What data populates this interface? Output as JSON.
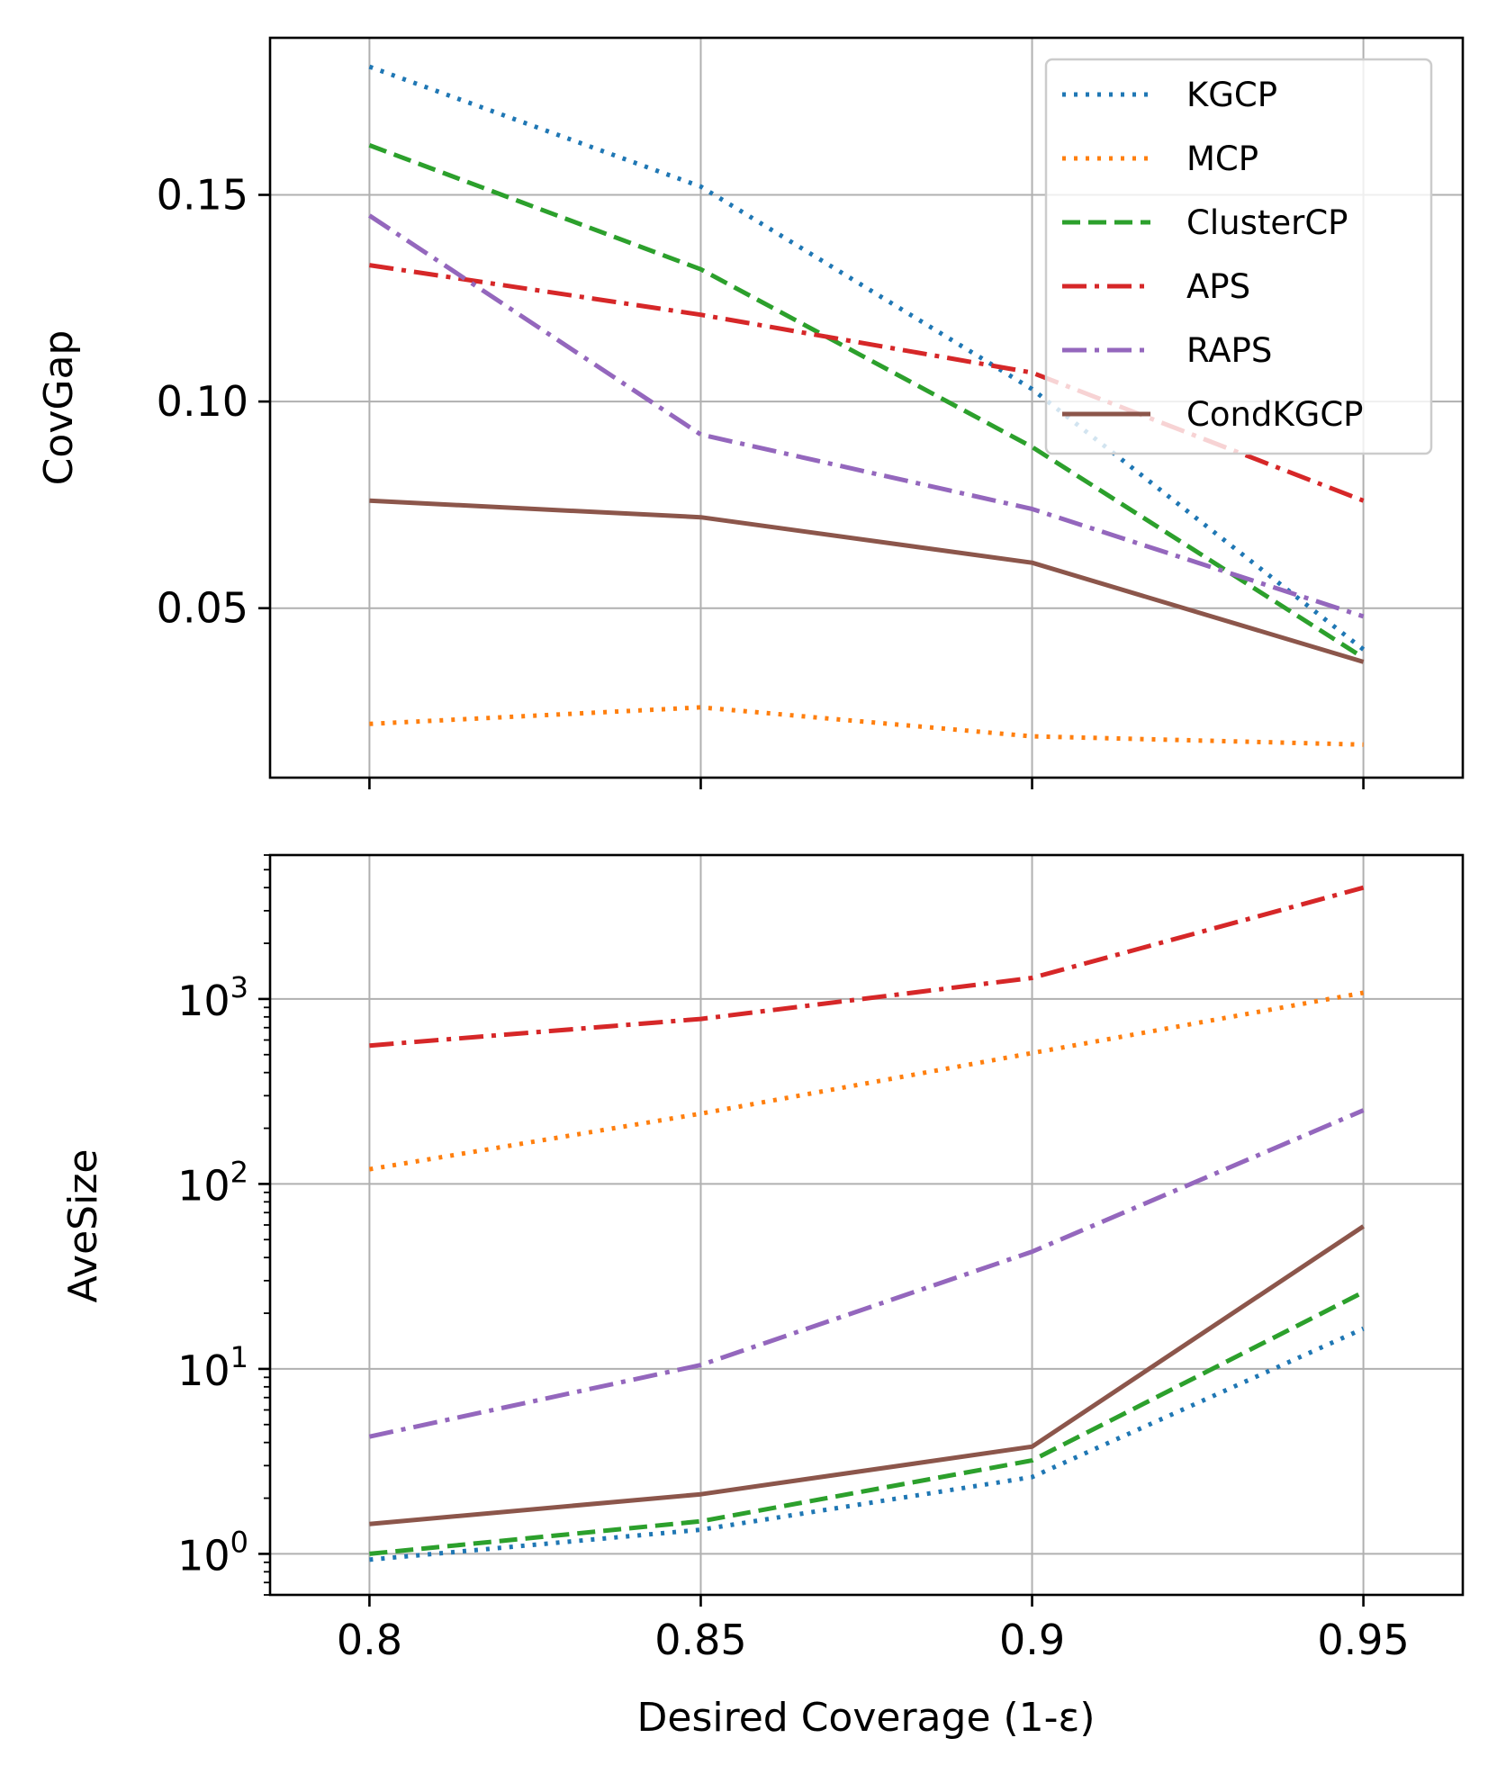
{
  "figure": {
    "xlabel": "Desired Coverage (1-ε)"
  },
  "chart_data": [
    {
      "type": "line",
      "title": "",
      "xlabel": "",
      "ylabel": "CovGap",
      "yscale": "linear",
      "grid": true,
      "legend_position": "top-right",
      "x": [
        0.8,
        0.85,
        0.9,
        0.95
      ],
      "xlim": [
        0.785,
        0.965
      ],
      "ylim": [
        0.009,
        0.188
      ],
      "yticks": [
        0.05,
        0.1,
        0.15
      ],
      "ytick_labels": [
        "0.05",
        "0.10",
        "0.15"
      ],
      "series": [
        {
          "name": "KGCP",
          "values": [
            0.181,
            0.152,
            0.103,
            0.04
          ],
          "color": "#1f77b4",
          "style": "dotted"
        },
        {
          "name": "MCP",
          "values": [
            0.022,
            0.026,
            0.019,
            0.017
          ],
          "color": "#ff7f0e",
          "style": "dotted"
        },
        {
          "name": "ClusterCP",
          "values": [
            0.162,
            0.132,
            0.089,
            0.038
          ],
          "color": "#2ca02c",
          "style": "dashed"
        },
        {
          "name": "APS",
          "values": [
            0.133,
            0.121,
            0.107,
            0.076
          ],
          "color": "#d62728",
          "style": "dashdot"
        },
        {
          "name": "RAPS",
          "values": [
            0.145,
            0.092,
            0.074,
            0.048
          ],
          "color": "#9467bd",
          "style": "dashdot"
        },
        {
          "name": "CondKGCP",
          "values": [
            0.076,
            0.072,
            0.061,
            0.037
          ],
          "color": "#8c564b",
          "style": "solid"
        }
      ]
    },
    {
      "type": "line",
      "title": "",
      "xlabel": "Desired Coverage (1-ε)",
      "ylabel": "AveSize",
      "yscale": "log",
      "grid": true,
      "x": [
        0.8,
        0.85,
        0.9,
        0.95
      ],
      "xtick_labels": [
        "0.8",
        "0.85",
        "0.9",
        "0.95"
      ],
      "xlim": [
        0.785,
        0.965
      ],
      "ylim": [
        0.6,
        6000
      ],
      "yticks": [
        1,
        10,
        100,
        1000
      ],
      "ytick_base": "10",
      "ytick_exponents": [
        "0",
        "1",
        "2",
        "3"
      ],
      "series": [
        {
          "name": "KGCP",
          "values": [
            0.93,
            1.35,
            2.6,
            16.5
          ],
          "color": "#1f77b4",
          "style": "dotted"
        },
        {
          "name": "MCP",
          "values": [
            120,
            240,
            510,
            1080
          ],
          "color": "#ff7f0e",
          "style": "dotted"
        },
        {
          "name": "ClusterCP",
          "values": [
            1.0,
            1.5,
            3.2,
            26
          ],
          "color": "#2ca02c",
          "style": "dashed"
        },
        {
          "name": "APS",
          "values": [
            560,
            780,
            1300,
            4000
          ],
          "color": "#d62728",
          "style": "dashdot"
        },
        {
          "name": "RAPS",
          "values": [
            4.3,
            10.5,
            43,
            250
          ],
          "color": "#9467bd",
          "style": "dashdot"
        },
        {
          "name": "CondKGCP",
          "values": [
            1.45,
            2.1,
            3.8,
            59
          ],
          "color": "#8c564b",
          "style": "solid"
        }
      ]
    }
  ]
}
